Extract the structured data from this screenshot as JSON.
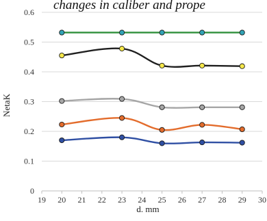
{
  "header_fragment": "changes in caliber and prope",
  "chart_data": {
    "type": "line",
    "xlabel": "d. mm",
    "ylabel": "NetaK",
    "xlim": [
      19,
      30
    ],
    "ylim": [
      0,
      0.6
    ],
    "x_ticks": [
      "19",
      "20",
      "21",
      "22",
      "23",
      "24",
      "25",
      "26",
      "27",
      "28",
      "29",
      "30"
    ],
    "y_ticks": [
      "0",
      "0.1",
      "0.2",
      "0.3",
      "0.4",
      "0.5",
      "0.6"
    ],
    "grid": true,
    "x": [
      20,
      23,
      25,
      27,
      29
    ],
    "series": [
      {
        "values": [
          0.532,
          0.532,
          0.532,
          0.532,
          0.532
        ],
        "line_color": "#2f8f3a",
        "marker_color": "#31a3b5"
      },
      {
        "values": [
          0.455,
          0.478,
          0.421,
          0.421,
          0.419
        ],
        "line_color": "#1f1f1f",
        "marker_color": "#f4e64a"
      },
      {
        "values": [
          0.302,
          0.309,
          0.281,
          0.281,
          0.281
        ],
        "line_color": "#a6a6a6",
        "marker_color": "#a6a6a6"
      },
      {
        "values": [
          0.223,
          0.245,
          0.205,
          0.222,
          0.207
        ],
        "line_color": "#e36c2c",
        "marker_color": "#e36c2c"
      },
      {
        "values": [
          0.17,
          0.18,
          0.16,
          0.163,
          0.162
        ],
        "line_color": "#2f4fa3",
        "marker_color": "#2f4fa3"
      }
    ]
  }
}
